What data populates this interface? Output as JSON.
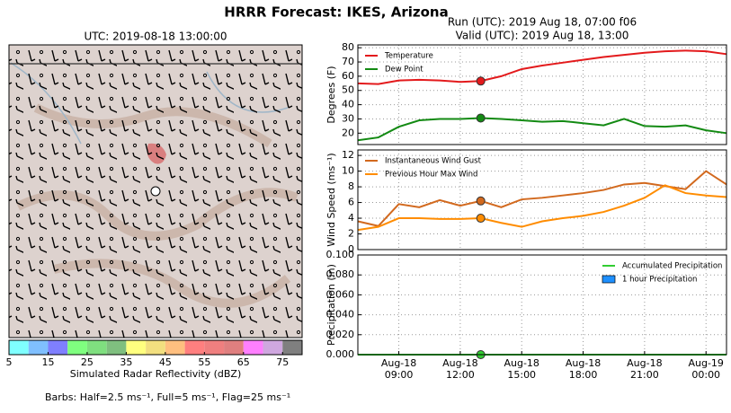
{
  "title": "HRRR Forecast: IKES, Arizona",
  "chart_data": [
    {
      "type": "map",
      "title": "UTC: 2019-08-18 13:00:00",
      "colorbar": {
        "label": "Simulated Radar Reflectivity (dBZ)",
        "bounds": [
          5,
          10,
          15,
          20,
          25,
          30,
          35,
          40,
          45,
          50,
          55,
          60,
          65,
          70,
          75,
          80
        ],
        "colors": [
          "#7fffff",
          "#7fbfff",
          "#7f7fff",
          "#7fff7f",
          "#7fdf7f",
          "#7fbf7f",
          "#ffff7f",
          "#f2df7f",
          "#ffbf7f",
          "#ff7f7f",
          "#ef7f7f",
          "#df7f7f",
          "#ff7fff",
          "#cfa7df",
          "#7f7f7f"
        ],
        "ticks": [
          5,
          15,
          25,
          35,
          45,
          55,
          65,
          75
        ]
      },
      "note": "Barbs: Half=2.5 ms⁻¹, Full=5 ms⁻¹, Flag=25 ms⁻¹"
    },
    {
      "type": "line",
      "title": [
        "Run (UTC): 2019 Aug 18, 07:00 f06",
        "Valid (UTC): 2019 Aug 18, 13:00"
      ],
      "ylabel": "Degrees (F)",
      "x": [
        "Aug-18 07:00",
        "Aug-18 08:00",
        "Aug-18 09:00",
        "Aug-18 10:00",
        "Aug-18 11:00",
        "Aug-18 12:00",
        "Aug-18 13:00",
        "Aug-18 14:00",
        "Aug-18 15:00",
        "Aug-18 16:00",
        "Aug-18 17:00",
        "Aug-18 18:00",
        "Aug-18 19:00",
        "Aug-18 20:00",
        "Aug-18 21:00",
        "Aug-18 22:00",
        "Aug-18 23:00",
        "Aug-19 00:00",
        "Aug-19 01:00"
      ],
      "series": [
        {
          "name": "Temperature",
          "color": "#e31a1c",
          "values": [
            55,
            54.5,
            57,
            57.5,
            57,
            56,
            56.6,
            60,
            65,
            67.5,
            69.5,
            71.5,
            73.5,
            75,
            76.5,
            77.5,
            78,
            77.5,
            75.5
          ]
        },
        {
          "name": "Dew Point",
          "color": "#138a13",
          "values": [
            15,
            17,
            24.5,
            29,
            30,
            30,
            30.6,
            30,
            29,
            28,
            28.5,
            27,
            25.5,
            30,
            25,
            24.5,
            25.5,
            22,
            20
          ]
        }
      ],
      "markers_at": "Aug-18 13:00",
      "ylim": [
        12,
        82
      ],
      "yticks": [
        20,
        30,
        40,
        50,
        60,
        70,
        80
      ],
      "grid": true,
      "legend": "upper left"
    },
    {
      "type": "line",
      "ylabel": "Wind Speed (ms⁻¹)",
      "x": [
        "Aug-18 07:00",
        "Aug-18 08:00",
        "Aug-18 09:00",
        "Aug-18 10:00",
        "Aug-18 11:00",
        "Aug-18 12:00",
        "Aug-18 13:00",
        "Aug-18 14:00",
        "Aug-18 15:00",
        "Aug-18 16:00",
        "Aug-18 17:00",
        "Aug-18 18:00",
        "Aug-18 19:00",
        "Aug-18 20:00",
        "Aug-18 21:00",
        "Aug-18 22:00",
        "Aug-18 23:00",
        "Aug-19 00:00",
        "Aug-19 01:00"
      ],
      "series": [
        {
          "name": "Instantaneous Wind Gust",
          "color": "#d2691e",
          "values": [
            3.6,
            3.0,
            5.8,
            5.4,
            6.3,
            5.6,
            6.2,
            5.4,
            6.4,
            6.6,
            6.9,
            7.2,
            7.6,
            8.3,
            8.5,
            8.1,
            7.7,
            10.0,
            8.3
          ]
        },
        {
          "name": "Previous Hour Max Wind",
          "color": "#ff8c00",
          "values": [
            2.5,
            2.9,
            4.0,
            4.0,
            3.9,
            3.9,
            4.0,
            3.4,
            2.9,
            3.6,
            4.0,
            4.3,
            4.8,
            5.6,
            6.6,
            8.2,
            7.2,
            6.9,
            6.7
          ]
        }
      ],
      "markers_at": "Aug-18 13:00",
      "ylim": [
        0,
        12.7
      ],
      "yticks": [
        0,
        2,
        4,
        6,
        8,
        10,
        12
      ],
      "grid": true,
      "legend": "upper left"
    },
    {
      "type": "line",
      "ylabel": "Precipitation (in)",
      "x": [
        "Aug-18 07:00",
        "Aug-18 08:00",
        "Aug-18 09:00",
        "Aug-18 10:00",
        "Aug-18 11:00",
        "Aug-18 12:00",
        "Aug-18 13:00",
        "Aug-18 14:00",
        "Aug-18 15:00",
        "Aug-18 16:00",
        "Aug-18 17:00",
        "Aug-18 18:00",
        "Aug-18 19:00",
        "Aug-18 20:00",
        "Aug-18 21:00",
        "Aug-18 22:00",
        "Aug-18 23:00",
        "Aug-19 00:00",
        "Aug-19 01:00"
      ],
      "series": [
        {
          "name": "Accumulated Precipitation",
          "color": "#32cd32",
          "values": [
            0,
            0,
            0,
            0,
            0,
            0,
            0,
            0,
            0,
            0,
            0,
            0,
            0,
            0,
            0,
            0,
            0,
            0,
            0
          ]
        },
        {
          "name": "1 hour Precipitation",
          "type": "bar",
          "color": "#1e90ff",
          "values": [
            0,
            0,
            0,
            0,
            0,
            0,
            0,
            0,
            0,
            0,
            0,
            0,
            0,
            0,
            0,
            0,
            0,
            0,
            0
          ]
        }
      ],
      "markers_at": "Aug-18 13:00",
      "ylim": [
        0,
        0.1
      ],
      "yticks": [
        {
          "value": 0,
          "label": "0.000"
        },
        {
          "value": 0.02,
          "label": "0.020"
        },
        {
          "value": 0.04,
          "label": "0.040"
        },
        {
          "value": 0.06,
          "label": "0.060"
        },
        {
          "value": 0.08,
          "label": "0.080"
        },
        {
          "value": 0.1,
          "label": "0.100"
        }
      ],
      "xlim": [
        "Aug-18 07:00",
        "Aug-19 01:00"
      ],
      "xticks": [
        {
          "value": "Aug-18 09:00",
          "label": [
            "Aug-18",
            "09:00"
          ]
        },
        {
          "value": "Aug-18 12:00",
          "label": [
            "Aug-18",
            "12:00"
          ]
        },
        {
          "value": "Aug-18 15:00",
          "label": [
            "Aug-18",
            "15:00"
          ]
        },
        {
          "value": "Aug-18 18:00",
          "label": [
            "Aug-18",
            "18:00"
          ]
        },
        {
          "value": "Aug-18 21:00",
          "label": [
            "Aug-18",
            "21:00"
          ]
        },
        {
          "value": "Aug-19 00:00",
          "label": [
            "Aug-19",
            "00:00"
          ]
        }
      ],
      "grid": true,
      "legend": "upper right"
    }
  ]
}
